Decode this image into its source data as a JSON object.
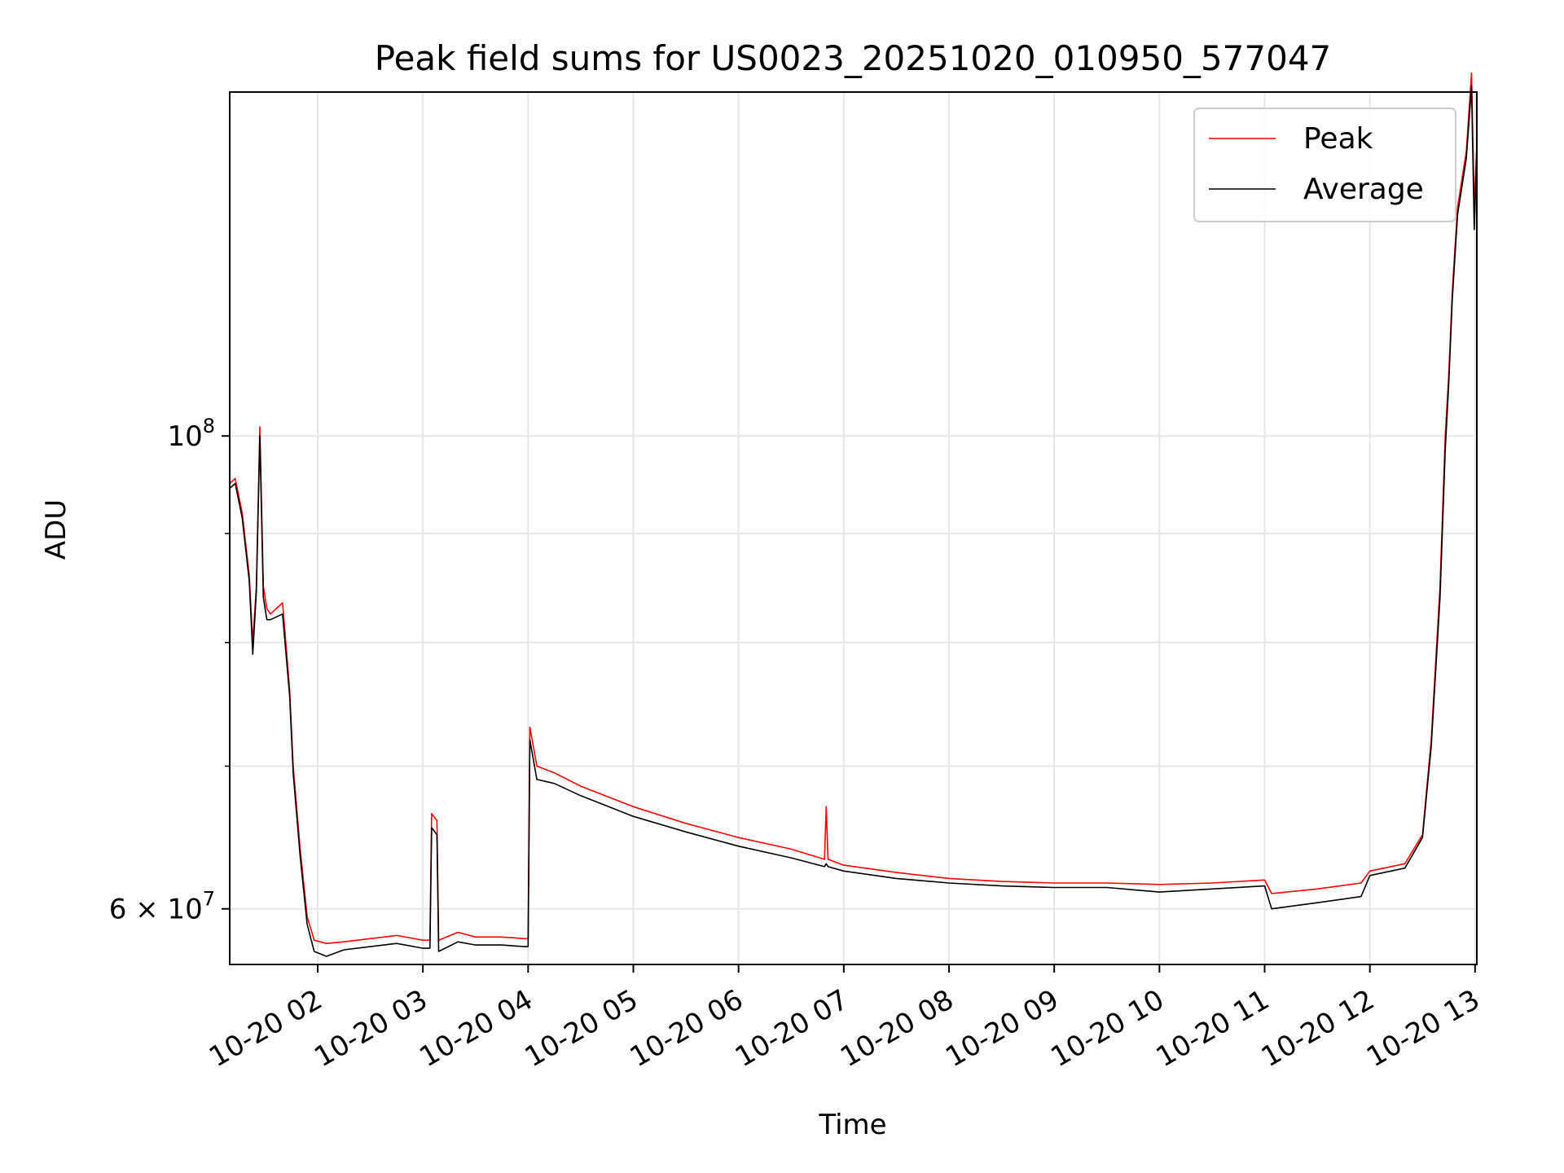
{
  "chart_data": {
    "type": "line",
    "title": "Peak field sums for US0023_20251020_010950_577047",
    "xlabel": "Time",
    "ylabel": "ADU",
    "x_range": [
      "2025-10-20 01:09:50",
      "2025-10-20 13:01:00"
    ],
    "x_ticks": [
      "10-20 02",
      "10-20 03",
      "10-20 04",
      "10-20 05",
      "10-20 06",
      "10-20 07",
      "10-20 08",
      "10-20 09",
      "10-20 10",
      "10-20 11",
      "10-20 12",
      "10-20 13"
    ],
    "y_scale": "log",
    "ylim": [
      56500000,
      145000000
    ],
    "y_ticks": [
      {
        "value": 100000000,
        "base": "10",
        "exp": "8",
        "kind": "power"
      },
      {
        "value": 60000000,
        "coef": "6",
        "base": "10",
        "exp": "7",
        "kind": "sci"
      }
    ],
    "y_minor_ticks": [
      70000000,
      80000000,
      90000000
    ],
    "grid": true,
    "legend": {
      "placement": "top-right"
    },
    "colors": {
      "peak": "#ff0000",
      "average": "#000000",
      "grid": "#e6e6e6",
      "axes": "#000000"
    },
    "series": [
      {
        "name": "Peak",
        "color": "#ff0000",
        "x": [
          "2025-10-20 01:09:50",
          "2025-10-20 01:13:00",
          "2025-10-20 01:17:00",
          "2025-10-20 01:21:00",
          "2025-10-20 01:23:00",
          "2025-10-20 01:25:00",
          "2025-10-20 01:27:00",
          "2025-10-20 01:29:00",
          "2025-10-20 01:31:00",
          "2025-10-20 01:33:00",
          "2025-10-20 01:40:00",
          "2025-10-20 01:44:00",
          "2025-10-20 01:46:00",
          "2025-10-20 01:50:00",
          "2025-10-20 01:54:00",
          "2025-10-20 01:58:00",
          "2025-10-20 02:05:00",
          "2025-10-20 02:15:00",
          "2025-10-20 02:30:00",
          "2025-10-20 02:45:00",
          "2025-10-20 03:00:00",
          "2025-10-20 03:04:00",
          "2025-10-20 03:05:00",
          "2025-10-20 03:08:00",
          "2025-10-20 03:09:00",
          "2025-10-20 03:20:00",
          "2025-10-20 03:30:00",
          "2025-10-20 03:45:00",
          "2025-10-20 03:58:00",
          "2025-10-20 04:00:00",
          "2025-10-20 04:01:00",
          "2025-10-20 04:05:00",
          "2025-10-20 04:15:00",
          "2025-10-20 04:30:00",
          "2025-10-20 05:00:00",
          "2025-10-20 05:30:00",
          "2025-10-20 06:00:00",
          "2025-10-20 06:30:00",
          "2025-10-20 06:49:00",
          "2025-10-20 06:50:00",
          "2025-10-20 06:51:00",
          "2025-10-20 07:00:00",
          "2025-10-20 07:30:00",
          "2025-10-20 08:00:00",
          "2025-10-20 08:30:00",
          "2025-10-20 09:00:00",
          "2025-10-20 09:30:00",
          "2025-10-20 10:00:00",
          "2025-10-20 10:30:00",
          "2025-10-20 11:00:00",
          "2025-10-20 11:04:00",
          "2025-10-20 11:30:00",
          "2025-10-20 11:55:00",
          "2025-10-20 12:00:00",
          "2025-10-20 12:20:00",
          "2025-10-20 12:30:00",
          "2025-10-20 12:35:00",
          "2025-10-20 12:40:00",
          "2025-10-20 12:43:00",
          "2025-10-20 12:45:00",
          "2025-10-20 12:47:00",
          "2025-10-20 12:50:00",
          "2025-10-20 12:55:00",
          "2025-10-20 12:58:00",
          "2025-10-20 12:59:30",
          "2025-10-20 13:01:00"
        ],
        "values": [
          95000000,
          95500000,
          92000000,
          86000000,
          80000000,
          85000000,
          101000000,
          85000000,
          83000000,
          82500000,
          83500000,
          76000000,
          70000000,
          64000000,
          59500000,
          58000000,
          57800000,
          57900000,
          58100000,
          58300000,
          58000000,
          58000000,
          66500000,
          66000000,
          58000000,
          58500000,
          58200000,
          58200000,
          58100000,
          58100000,
          73000000,
          70000000,
          69500000,
          68500000,
          67000000,
          65800000,
          64800000,
          64000000,
          63300000,
          67000000,
          63300000,
          62900000,
          62400000,
          62000000,
          61800000,
          61700000,
          61700000,
          61600000,
          61700000,
          61900000,
          61000000,
          61300000,
          61700000,
          62500000,
          63000000,
          65000000,
          72000000,
          85000000,
          100000000,
          107000000,
          117000000,
          128000000,
          136000000,
          148000000,
          128000000,
          137000000
        ]
      },
      {
        "name": "Average",
        "color": "#000000",
        "x": [
          "2025-10-20 01:09:50",
          "2025-10-20 01:13:00",
          "2025-10-20 01:17:00",
          "2025-10-20 01:21:00",
          "2025-10-20 01:23:00",
          "2025-10-20 01:25:00",
          "2025-10-20 01:27:00",
          "2025-10-20 01:29:00",
          "2025-10-20 01:31:00",
          "2025-10-20 01:33:00",
          "2025-10-20 01:40:00",
          "2025-10-20 01:44:00",
          "2025-10-20 01:46:00",
          "2025-10-20 01:50:00",
          "2025-10-20 01:54:00",
          "2025-10-20 01:58:00",
          "2025-10-20 02:05:00",
          "2025-10-20 02:15:00",
          "2025-10-20 02:30:00",
          "2025-10-20 02:45:00",
          "2025-10-20 03:00:00",
          "2025-10-20 03:04:00",
          "2025-10-20 03:05:00",
          "2025-10-20 03:08:00",
          "2025-10-20 03:09:00",
          "2025-10-20 03:20:00",
          "2025-10-20 03:30:00",
          "2025-10-20 03:45:00",
          "2025-10-20 03:58:00",
          "2025-10-20 04:00:00",
          "2025-10-20 04:01:00",
          "2025-10-20 04:05:00",
          "2025-10-20 04:15:00",
          "2025-10-20 04:30:00",
          "2025-10-20 05:00:00",
          "2025-10-20 05:30:00",
          "2025-10-20 06:00:00",
          "2025-10-20 06:30:00",
          "2025-10-20 06:49:00",
          "2025-10-20 06:50:00",
          "2025-10-20 06:51:00",
          "2025-10-20 07:00:00",
          "2025-10-20 07:30:00",
          "2025-10-20 08:00:00",
          "2025-10-20 08:30:00",
          "2025-10-20 09:00:00",
          "2025-10-20 09:30:00",
          "2025-10-20 10:00:00",
          "2025-10-20 10:30:00",
          "2025-10-20 11:00:00",
          "2025-10-20 11:04:00",
          "2025-10-20 11:30:00",
          "2025-10-20 11:55:00",
          "2025-10-20 12:00:00",
          "2025-10-20 12:20:00",
          "2025-10-20 12:30:00",
          "2025-10-20 12:35:00",
          "2025-10-20 12:40:00",
          "2025-10-20 12:43:00",
          "2025-10-20 12:45:00",
          "2025-10-20 12:47:00",
          "2025-10-20 12:50:00",
          "2025-10-20 12:55:00",
          "2025-10-20 12:58:00",
          "2025-10-20 12:59:30",
          "2025-10-20 13:01:00"
        ],
        "values": [
          94500000,
          95000000,
          91500000,
          85500000,
          79000000,
          84500000,
          100000000,
          84000000,
          82000000,
          82000000,
          82500000,
          75500000,
          69500000,
          63500000,
          59000000,
          57300000,
          57000000,
          57400000,
          57600000,
          57800000,
          57500000,
          57500000,
          65500000,
          65000000,
          57300000,
          57900000,
          57700000,
          57700000,
          57600000,
          57600000,
          72000000,
          69000000,
          68700000,
          67800000,
          66300000,
          65200000,
          64200000,
          63400000,
          62800000,
          63000000,
          62800000,
          62500000,
          62000000,
          61700000,
          61500000,
          61400000,
          61400000,
          61100000,
          61300000,
          61500000,
          60000000,
          60400000,
          60800000,
          62200000,
          62700000,
          64800000,
          71500000,
          84000000,
          98500000,
          106000000,
          116000000,
          127000000,
          135000000,
          146000000,
          125000000,
          136000000
        ]
      }
    ]
  }
}
